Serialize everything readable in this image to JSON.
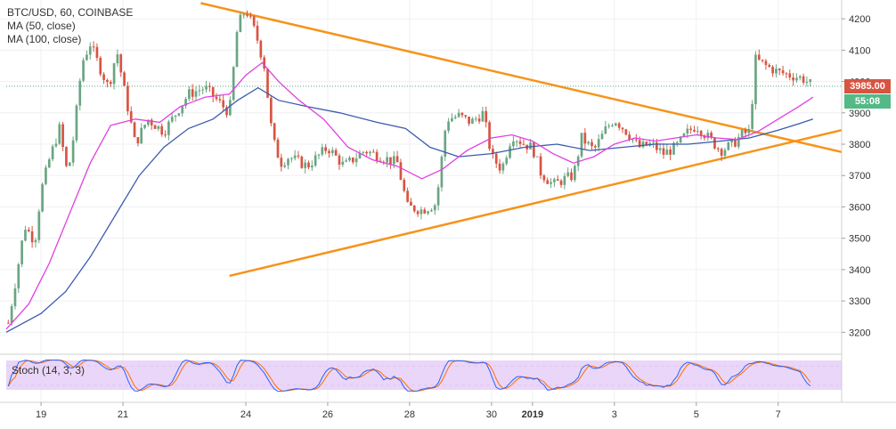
{
  "chart_data": [
    {
      "type": "candlestick",
      "title": "BTC/USD, 60, COINBASE",
      "indicators": [
        "MA (50, close)",
        "MA (100, close)"
      ],
      "ylim": [
        3130,
        4260
      ],
      "y_ticks": [
        4200,
        4100,
        4000,
        3900,
        3800,
        3700,
        3600,
        3500,
        3400,
        3300,
        3200
      ],
      "x_ticks": [
        {
          "label": "19",
          "day": 0
        },
        {
          "label": "21",
          "day": 2
        },
        {
          "label": "24",
          "day": 5
        },
        {
          "label": "26",
          "day": 7
        },
        {
          "label": "28",
          "day": 9
        },
        {
          "label": "30",
          "day": 11
        },
        {
          "label": "2019",
          "day": 12
        },
        {
          "label": "3",
          "day": 14
        },
        {
          "label": "5",
          "day": 16
        },
        {
          "label": "7",
          "day": 18
        }
      ],
      "xlim_days": [
        -0.85,
        19.55
      ],
      "last_price": "3985.00",
      "countdown": "55:08",
      "close_series": [
        {
          "day": -0.8,
          "value": 3230
        },
        {
          "day": -0.6,
          "value": 3380
        },
        {
          "day": -0.4,
          "value": 3540
        },
        {
          "day": -0.15,
          "value": 3490
        },
        {
          "day": 0.0,
          "value": 3650
        },
        {
          "day": 0.2,
          "value": 3750
        },
        {
          "day": 0.45,
          "value": 3850
        },
        {
          "day": 0.65,
          "value": 3700
        },
        {
          "day": 0.8,
          "value": 3830
        },
        {
          "day": 1.0,
          "value": 4060
        },
        {
          "day": 1.2,
          "value": 4120
        },
        {
          "day": 1.45,
          "value": 4040
        },
        {
          "day": 1.65,
          "value": 3980
        },
        {
          "day": 1.85,
          "value": 4100
        },
        {
          "day": 2.05,
          "value": 3960
        },
        {
          "day": 2.3,
          "value": 3800
        },
        {
          "day": 2.6,
          "value": 3880
        },
        {
          "day": 3.0,
          "value": 3840
        },
        {
          "day": 3.3,
          "value": 3900
        },
        {
          "day": 3.6,
          "value": 3960
        },
        {
          "day": 4.0,
          "value": 3980
        },
        {
          "day": 4.3,
          "value": 3940
        },
        {
          "day": 4.6,
          "value": 3900
        },
        {
          "day": 4.8,
          "value": 4180
        },
        {
          "day": 5.0,
          "value": 4230
        },
        {
          "day": 5.25,
          "value": 4150
        },
        {
          "day": 5.45,
          "value": 4050
        },
        {
          "day": 5.65,
          "value": 3820
        },
        {
          "day": 5.85,
          "value": 3740
        },
        {
          "day": 6.05,
          "value": 3760
        },
        {
          "day": 6.5,
          "value": 3730
        },
        {
          "day": 7.0,
          "value": 3790
        },
        {
          "day": 7.4,
          "value": 3730
        },
        {
          "day": 7.9,
          "value": 3780
        },
        {
          "day": 8.3,
          "value": 3760
        },
        {
          "day": 8.7,
          "value": 3740
        },
        {
          "day": 8.95,
          "value": 3600
        },
        {
          "day": 9.3,
          "value": 3590
        },
        {
          "day": 9.65,
          "value": 3610
        },
        {
          "day": 9.9,
          "value": 3880
        },
        {
          "day": 10.2,
          "value": 3890
        },
        {
          "day": 10.5,
          "value": 3870
        },
        {
          "day": 10.8,
          "value": 3900
        },
        {
          "day": 11.0,
          "value": 3760
        },
        {
          "day": 11.25,
          "value": 3720
        },
        {
          "day": 11.5,
          "value": 3830
        },
        {
          "day": 11.8,
          "value": 3800
        },
        {
          "day": 12.0,
          "value": 3790
        },
        {
          "day": 12.2,
          "value": 3710
        },
        {
          "day": 12.5,
          "value": 3670
        },
        {
          "day": 12.8,
          "value": 3690
        },
        {
          "day": 13.0,
          "value": 3700
        },
        {
          "day": 13.2,
          "value": 3820
        },
        {
          "day": 13.5,
          "value": 3780
        },
        {
          "day": 13.8,
          "value": 3850
        },
        {
          "day": 14.0,
          "value": 3880
        },
        {
          "day": 14.3,
          "value": 3840
        },
        {
          "day": 14.6,
          "value": 3790
        },
        {
          "day": 14.9,
          "value": 3800
        },
        {
          "day": 15.2,
          "value": 3770
        },
        {
          "day": 15.5,
          "value": 3790
        },
        {
          "day": 15.8,
          "value": 3840
        },
        {
          "day": 16.0,
          "value": 3860
        },
        {
          "day": 16.3,
          "value": 3820
        },
        {
          "day": 16.6,
          "value": 3780
        },
        {
          "day": 16.9,
          "value": 3800
        },
        {
          "day": 17.1,
          "value": 3830
        },
        {
          "day": 17.3,
          "value": 3840
        },
        {
          "day": 17.45,
          "value": 4070
        },
        {
          "day": 17.7,
          "value": 4050
        },
        {
          "day": 18.0,
          "value": 4030
        },
        {
          "day": 18.3,
          "value": 4020
        },
        {
          "day": 18.6,
          "value": 4010
        },
        {
          "day": 18.85,
          "value": 3985
        }
      ],
      "ma50": [
        {
          "day": -0.85,
          "value": 3210
        },
        {
          "day": -0.3,
          "value": 3290
        },
        {
          "day": 0.2,
          "value": 3420
        },
        {
          "day": 0.7,
          "value": 3580
        },
        {
          "day": 1.2,
          "value": 3740
        },
        {
          "day": 1.7,
          "value": 3860
        },
        {
          "day": 2.3,
          "value": 3880
        },
        {
          "day": 2.9,
          "value": 3870
        },
        {
          "day": 3.4,
          "value": 3920
        },
        {
          "day": 4.0,
          "value": 3950
        },
        {
          "day": 4.6,
          "value": 3960
        },
        {
          "day": 5.0,
          "value": 4020
        },
        {
          "day": 5.4,
          "value": 4060
        },
        {
          "day": 5.8,
          "value": 4000
        },
        {
          "day": 6.3,
          "value": 3940
        },
        {
          "day": 6.9,
          "value": 3880
        },
        {
          "day": 7.5,
          "value": 3790
        },
        {
          "day": 8.1,
          "value": 3750
        },
        {
          "day": 8.7,
          "value": 3730
        },
        {
          "day": 9.3,
          "value": 3690
        },
        {
          "day": 9.8,
          "value": 3720
        },
        {
          "day": 10.4,
          "value": 3780
        },
        {
          "day": 11.0,
          "value": 3820
        },
        {
          "day": 11.5,
          "value": 3830
        },
        {
          "day": 12.0,
          "value": 3810
        },
        {
          "day": 12.5,
          "value": 3770
        },
        {
          "day": 13.0,
          "value": 3740
        },
        {
          "day": 13.5,
          "value": 3760
        },
        {
          "day": 14.0,
          "value": 3800
        },
        {
          "day": 14.5,
          "value": 3820
        },
        {
          "day": 15.0,
          "value": 3810
        },
        {
          "day": 15.5,
          "value": 3820
        },
        {
          "day": 16.0,
          "value": 3830
        },
        {
          "day": 16.5,
          "value": 3820
        },
        {
          "day": 17.0,
          "value": 3815
        },
        {
          "day": 17.5,
          "value": 3840
        },
        {
          "day": 18.0,
          "value": 3880
        },
        {
          "day": 18.5,
          "value": 3920
        },
        {
          "day": 18.85,
          "value": 3950
        }
      ],
      "ma100": [
        {
          "day": -0.85,
          "value": 3200
        },
        {
          "day": 0.0,
          "value": 3260
        },
        {
          "day": 0.6,
          "value": 3330
        },
        {
          "day": 1.2,
          "value": 3440
        },
        {
          "day": 1.8,
          "value": 3570
        },
        {
          "day": 2.4,
          "value": 3700
        },
        {
          "day": 3.0,
          "value": 3790
        },
        {
          "day": 3.6,
          "value": 3850
        },
        {
          "day": 4.2,
          "value": 3880
        },
        {
          "day": 4.8,
          "value": 3940
        },
        {
          "day": 5.3,
          "value": 3980
        },
        {
          "day": 5.8,
          "value": 3940
        },
        {
          "day": 6.5,
          "value": 3920
        },
        {
          "day": 7.3,
          "value": 3900
        },
        {
          "day": 8.2,
          "value": 3870
        },
        {
          "day": 8.9,
          "value": 3850
        },
        {
          "day": 9.5,
          "value": 3790
        },
        {
          "day": 10.2,
          "value": 3760
        },
        {
          "day": 11.0,
          "value": 3770
        },
        {
          "day": 11.8,
          "value": 3790
        },
        {
          "day": 12.6,
          "value": 3800
        },
        {
          "day": 13.4,
          "value": 3780
        },
        {
          "day": 14.2,
          "value": 3790
        },
        {
          "day": 15.0,
          "value": 3800
        },
        {
          "day": 15.8,
          "value": 3800
        },
        {
          "day": 16.6,
          "value": 3810
        },
        {
          "day": 17.3,
          "value": 3820
        },
        {
          "day": 18.0,
          "value": 3845
        },
        {
          "day": 18.5,
          "value": 3865
        },
        {
          "day": 18.85,
          "value": 3880
        }
      ],
      "trend_lines": [
        {
          "start": {
            "day": 3.9,
            "value": 4250
          },
          "end": {
            "day": 19.55,
            "value": 3775
          }
        },
        {
          "start": {
            "day": 4.6,
            "value": 3380
          },
          "end": {
            "day": 19.55,
            "value": 3845
          }
        }
      ],
      "colors": {
        "up": "#6ba583",
        "down": "#d75442",
        "ma50": "#e040e0",
        "ma100": "#3b5bab",
        "trend": "#f7931a",
        "last_price": "#d75442",
        "countdown": "#53b987"
      }
    },
    {
      "type": "line",
      "label": "Stoch (14, 3, 3)",
      "ylim": [
        0,
        100
      ],
      "bands": [
        80,
        20
      ],
      "colors": {
        "k": "#2962ff",
        "d": "#ff6d00",
        "band_fill": "#e8d2f7"
      }
    }
  ]
}
